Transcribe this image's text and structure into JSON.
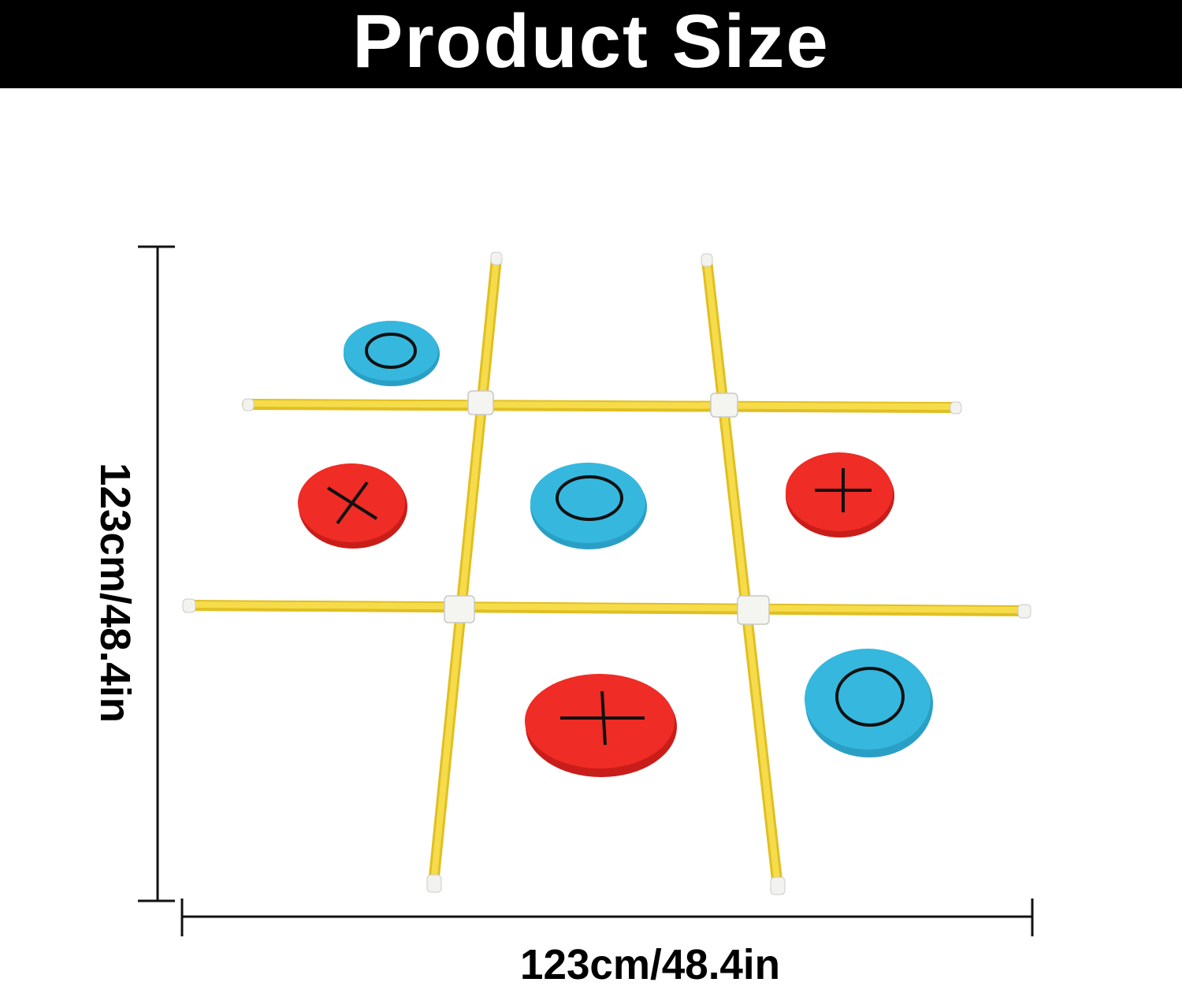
{
  "header": {
    "title": "Product Size"
  },
  "dimensions": {
    "height_label": "123cm/48.4in",
    "width_label": "123cm/48.4in"
  },
  "colors": {
    "pole": "#f2d43a",
    "connector": "#f4f4f0",
    "red_disc": "#ee2a24",
    "blue_disc": "#33b6dc",
    "symbol": "#111111"
  },
  "pieces": [
    {
      "color": "blue",
      "symbol": "O"
    },
    {
      "color": "red",
      "symbol": "X"
    },
    {
      "color": "blue",
      "symbol": "O"
    },
    {
      "color": "red",
      "symbol": "+"
    },
    {
      "color": "red",
      "symbol": "+"
    },
    {
      "color": "blue",
      "symbol": "O"
    }
  ]
}
